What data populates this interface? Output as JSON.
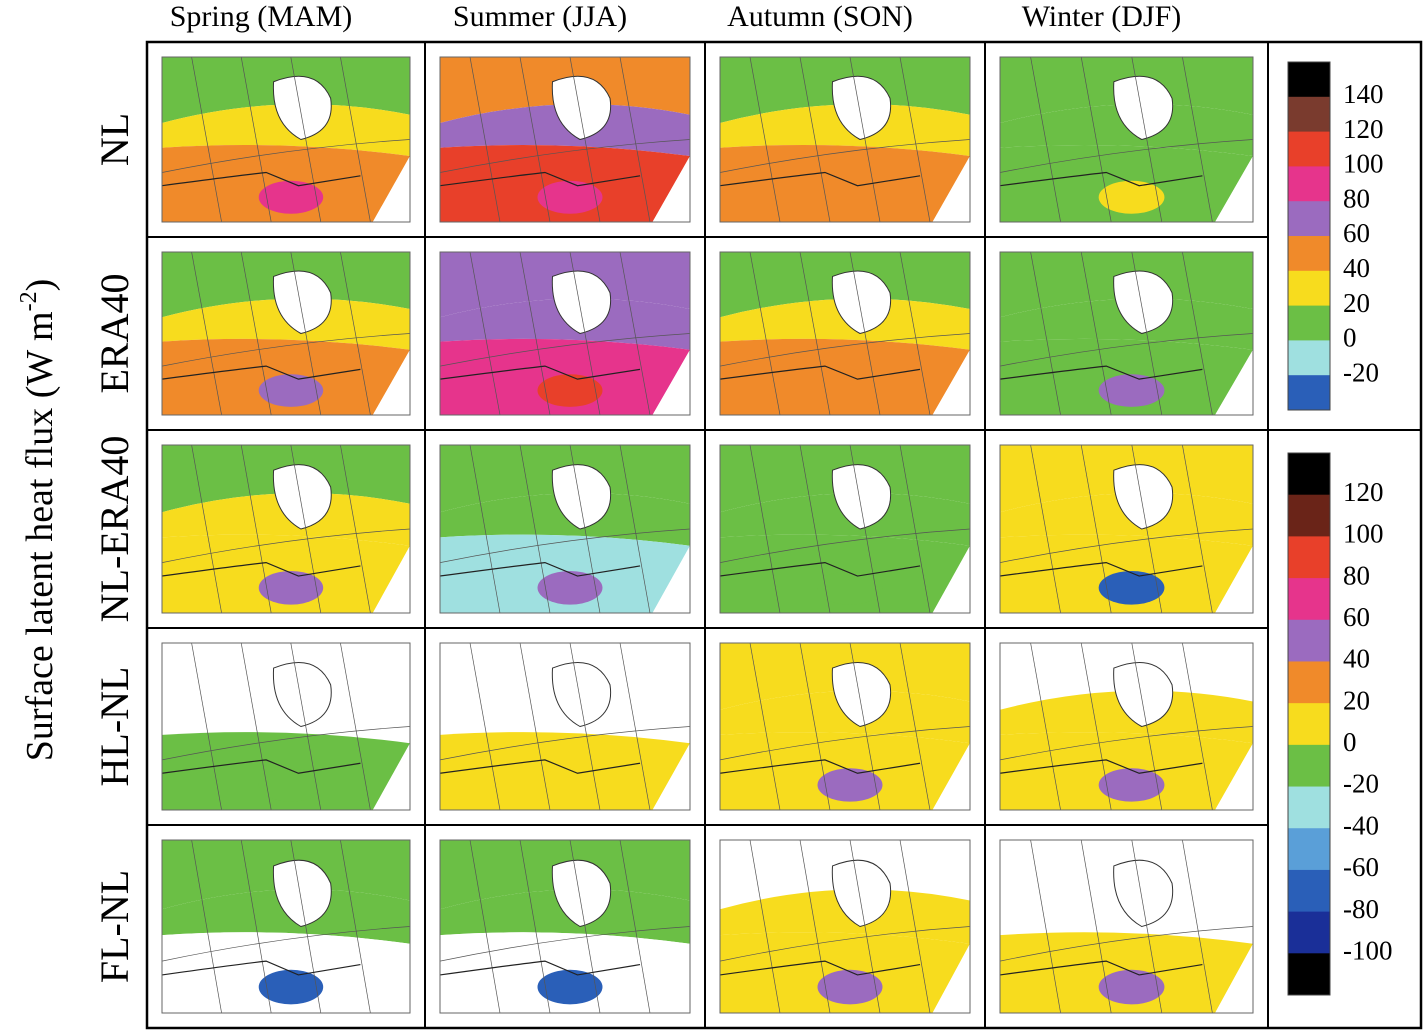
{
  "figure": {
    "columns": [
      "Spring (MAM)",
      "Summer (JJA)",
      "Autumn (SON)",
      "Winter (DJF)"
    ],
    "rows": [
      "NL",
      "ERA40",
      "NL-ERA40",
      "HL-NL",
      "FL-NL"
    ],
    "y_label": {
      "text": "Surface latent heat flux (W m",
      "superscript": "-2",
      "end": ")"
    },
    "colorbars": [
      {
        "labels": [
          140,
          120,
          100,
          80,
          60,
          40,
          20,
          0,
          -20
        ],
        "colors": [
          "#000000",
          "#7a3b2e",
          "#e8402a",
          "#e6348c",
          "#9b6bbf",
          "#f08a2a",
          "#f7dc1e",
          "#6bbf45",
          "#9fe0e0",
          "#2a5fb8"
        ]
      },
      {
        "labels": [
          120,
          100,
          80,
          60,
          40,
          20,
          0,
          -20,
          -40,
          -60,
          -80,
          -100
        ],
        "colors": [
          "#000000",
          "#6a2418",
          "#e8402a",
          "#e6348c",
          "#9b6bbf",
          "#f08a2a",
          "#f7dc1e",
          "#6bbf45",
          "#9fe0e0",
          "#5a9fd8",
          "#2a5fb8",
          "#1a2f98",
          "#000000"
        ]
      }
    ]
  }
}
